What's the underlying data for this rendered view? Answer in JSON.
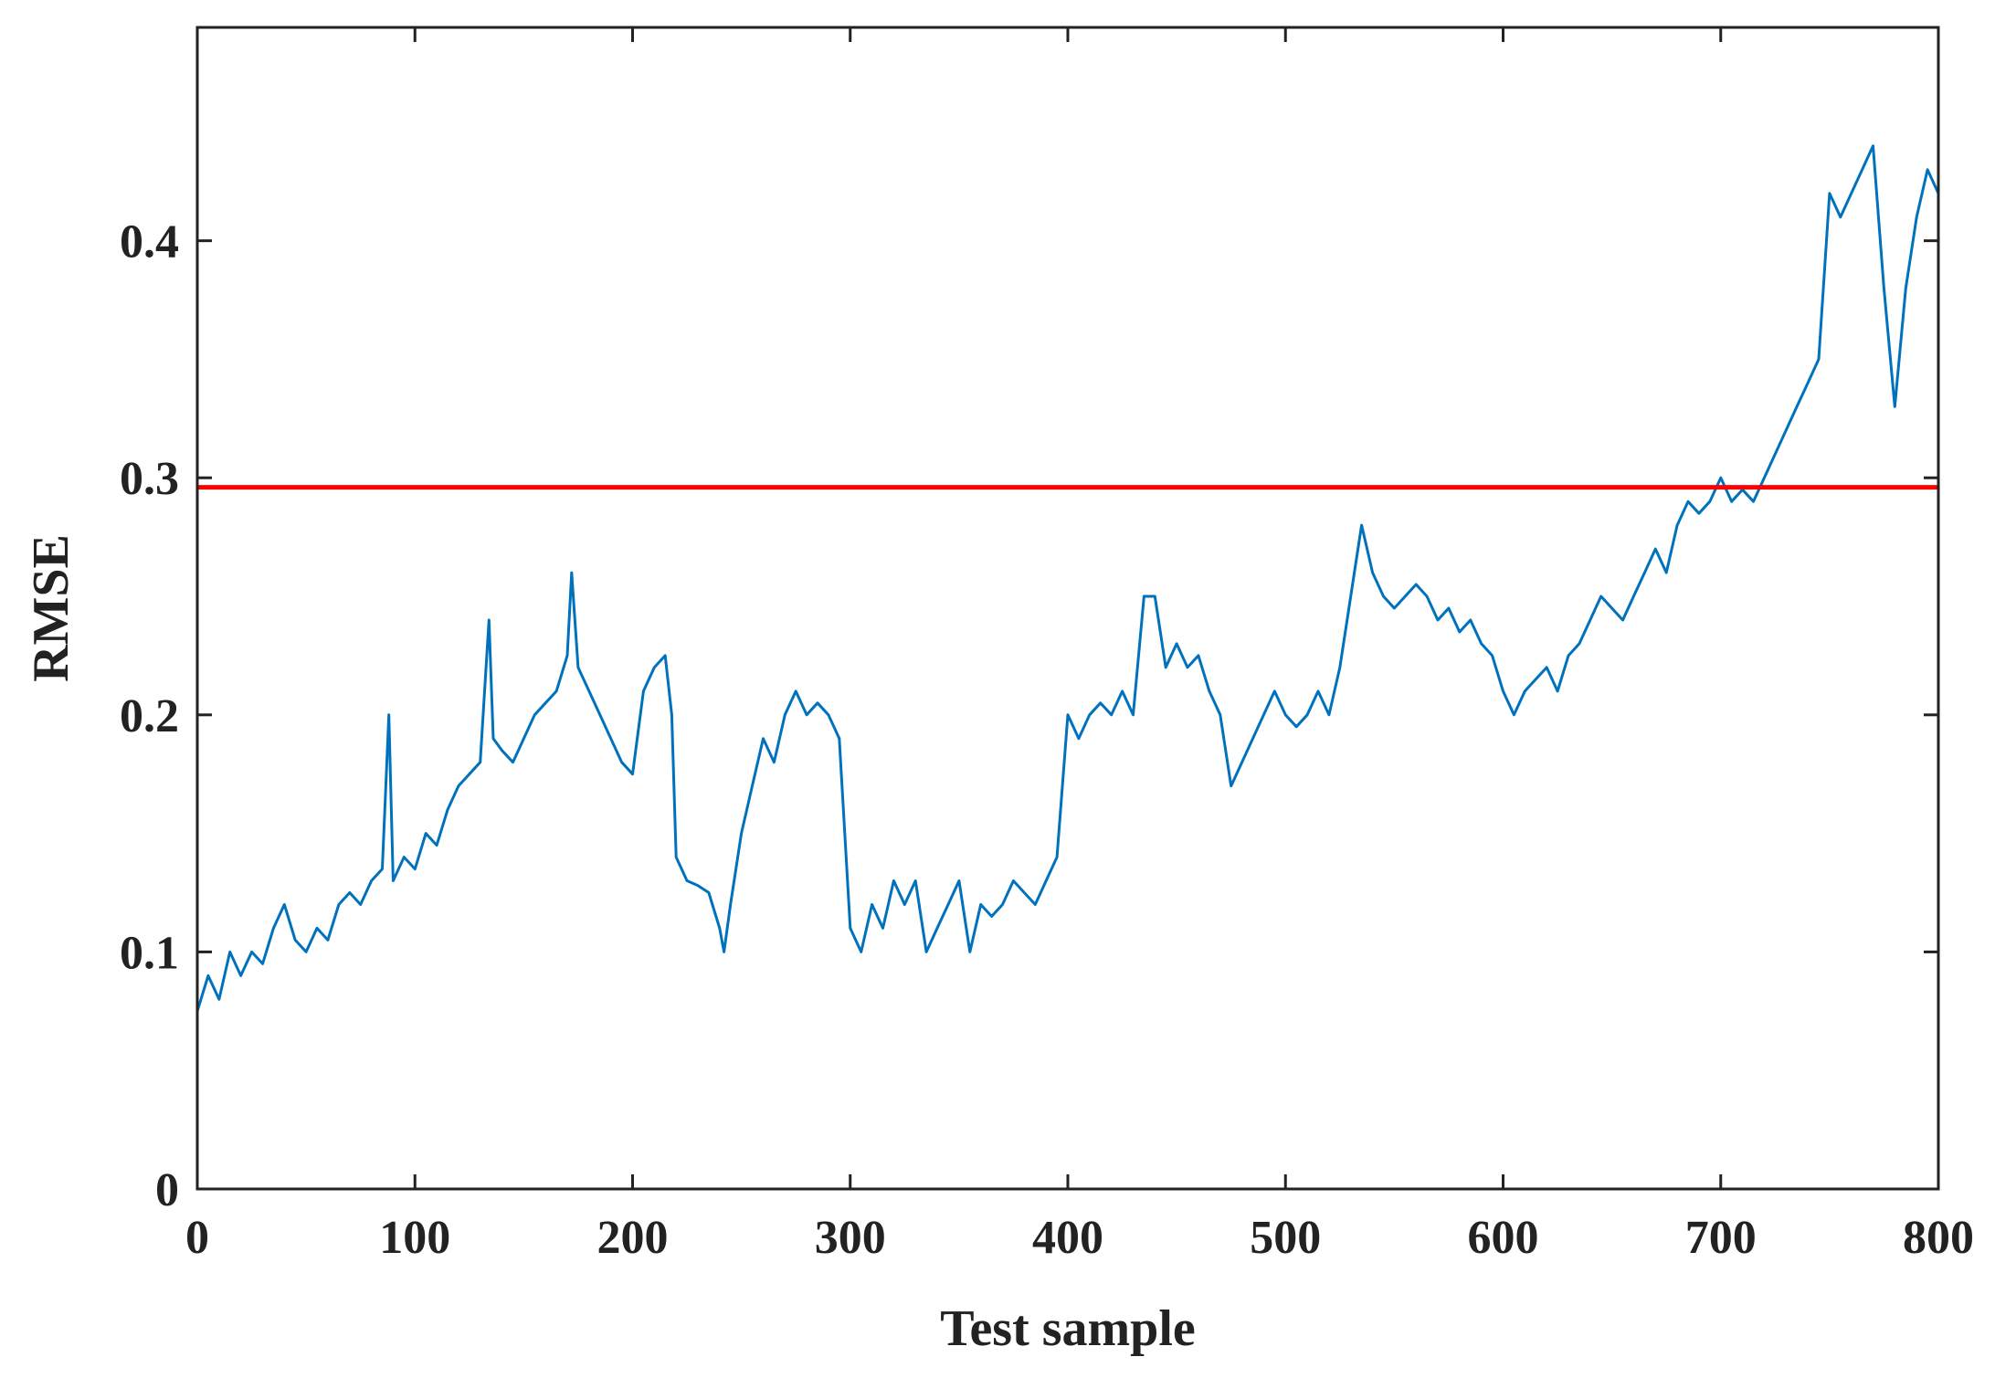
{
  "chart_data": {
    "type": "line",
    "title": "",
    "xlabel": "Test sample",
    "ylabel": "RMSE",
    "xlim": [
      0,
      800
    ],
    "ylim": [
      0,
      0.49
    ],
    "xticks": [
      0,
      100,
      200,
      300,
      400,
      500,
      600,
      700,
      800
    ],
    "xtick_labels": [
      "0",
      "100",
      "200",
      "300",
      "400",
      "500",
      "600",
      "700",
      "800"
    ],
    "yticks": [
      0,
      0.1,
      0.2,
      0.3,
      0.4
    ],
    "ytick_labels": [
      "0",
      "0.1",
      "0.2",
      "0.3",
      "0.4"
    ],
    "grid": false,
    "legend": "none",
    "series": [
      {
        "color": "#0072BD",
        "x": [
          0,
          5,
          10,
          15,
          20,
          25,
          30,
          35,
          40,
          45,
          50,
          55,
          60,
          65,
          70,
          75,
          80,
          85,
          88,
          90,
          95,
          100,
          105,
          110,
          115,
          120,
          125,
          130,
          134,
          136,
          140,
          145,
          150,
          155,
          160,
          165,
          170,
          172,
          175,
          180,
          185,
          190,
          195,
          200,
          205,
          210,
          215,
          218,
          220,
          225,
          230,
          235,
          240,
          242,
          245,
          250,
          255,
          260,
          265,
          270,
          275,
          280,
          285,
          290,
          295,
          300,
          305,
          310,
          315,
          320,
          325,
          330,
          335,
          340,
          345,
          350,
          355,
          360,
          365,
          370,
          375,
          380,
          385,
          390,
          395,
          400,
          405,
          410,
          415,
          420,
          425,
          430,
          435,
          440,
          445,
          450,
          455,
          460,
          465,
          470,
          475,
          480,
          485,
          490,
          495,
          500,
          505,
          510,
          515,
          520,
          525,
          530,
          535,
          540,
          545,
          550,
          555,
          560,
          565,
          570,
          575,
          580,
          585,
          590,
          595,
          600,
          605,
          610,
          615,
          620,
          625,
          630,
          635,
          640,
          645,
          650,
          655,
          660,
          665,
          670,
          675,
          680,
          685,
          690,
          695,
          700,
          705,
          710,
          715,
          720,
          725,
          730,
          735,
          740,
          745,
          750,
          755,
          760,
          765,
          770,
          775,
          780,
          785,
          790,
          795,
          800
        ],
        "y": [
          0.075,
          0.09,
          0.08,
          0.1,
          0.09,
          0.1,
          0.095,
          0.11,
          0.12,
          0.105,
          0.1,
          0.11,
          0.105,
          0.12,
          0.125,
          0.12,
          0.13,
          0.135,
          0.2,
          0.13,
          0.14,
          0.135,
          0.15,
          0.145,
          0.16,
          0.17,
          0.175,
          0.18,
          0.24,
          0.19,
          0.185,
          0.18,
          0.19,
          0.2,
          0.205,
          0.21,
          0.225,
          0.26,
          0.22,
          0.21,
          0.2,
          0.19,
          0.18,
          0.175,
          0.21,
          0.22,
          0.225,
          0.2,
          0.14,
          0.13,
          0.128,
          0.125,
          0.11,
          0.1,
          0.12,
          0.15,
          0.17,
          0.19,
          0.18,
          0.2,
          0.21,
          0.2,
          0.205,
          0.2,
          0.19,
          0.11,
          0.1,
          0.12,
          0.11,
          0.13,
          0.12,
          0.13,
          0.1,
          0.11,
          0.12,
          0.13,
          0.1,
          0.12,
          0.115,
          0.12,
          0.13,
          0.125,
          0.12,
          0.13,
          0.14,
          0.2,
          0.19,
          0.2,
          0.205,
          0.2,
          0.21,
          0.2,
          0.25,
          0.25,
          0.22,
          0.23,
          0.22,
          0.225,
          0.21,
          0.2,
          0.17,
          0.18,
          0.19,
          0.2,
          0.21,
          0.2,
          0.195,
          0.2,
          0.21,
          0.2,
          0.22,
          0.25,
          0.28,
          0.26,
          0.25,
          0.245,
          0.25,
          0.255,
          0.25,
          0.24,
          0.245,
          0.235,
          0.24,
          0.23,
          0.225,
          0.21,
          0.2,
          0.21,
          0.215,
          0.22,
          0.21,
          0.225,
          0.23,
          0.24,
          0.25,
          0.245,
          0.24,
          0.25,
          0.26,
          0.27,
          0.26,
          0.28,
          0.29,
          0.285,
          0.29,
          0.3,
          0.29,
          0.295,
          0.29,
          0.3,
          0.31,
          0.32,
          0.33,
          0.34,
          0.35,
          0.42,
          0.41,
          0.42,
          0.43,
          0.44,
          0.38,
          0.33,
          0.38,
          0.41,
          0.43,
          0.42
        ]
      },
      {
        "color": "#FF0000",
        "x": [
          0,
          800
        ],
        "y": [
          0.296,
          0.296
        ]
      }
    ]
  }
}
